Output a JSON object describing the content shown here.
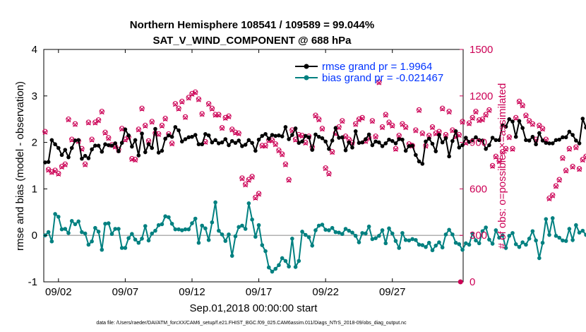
{
  "chart_data": {
    "type": "line",
    "title": "Northern Hemisphere 108541 / 109589 = 99.044%",
    "subtitle": "SAT_V_WIND_COMPONENT @ 688 hPa",
    "xlabel": "Sep.01,2018 00:00:00 start",
    "ylabel": "rmse and bias (model - observation)",
    "y2label": "# of obs: o=possible; ×=assimilated",
    "x_ticks": [
      "09/02",
      "09/07",
      "09/12",
      "09/17",
      "09/22",
      "09/27"
    ],
    "x_tick_days": [
      2,
      7,
      12,
      17,
      22,
      27
    ],
    "xlim": [
      0.9,
      32.3
    ],
    "ylim": [
      -1,
      4
    ],
    "y_ticks": [
      "-1",
      "0",
      "1",
      "2",
      "3",
      "4"
    ],
    "y2lim": [
      0,
      1500
    ],
    "y2_ticks": [
      "0",
      "300",
      "600",
      "900",
      "1200",
      "1500"
    ],
    "zero_line": 0,
    "grid": false,
    "legend_position": "top-right",
    "colors": {
      "rmse": "#000000",
      "bias": "#008080",
      "obs": "#cc0055",
      "legend_text": "#0033ff",
      "zero_line": "#b0b0b0"
    },
    "series": [
      {
        "name": "rmse grand pr = 1.9964",
        "axis": "left",
        "start_day": 1.0,
        "step_days": 0.25,
        "values": [
          1.57,
          1.58,
          2.05,
          1.96,
          1.88,
          1.73,
          1.84,
          1.68,
          1.88,
          2.04,
          2.05,
          1.65,
          1.71,
          1.66,
          1.85,
          1.93,
          1.93,
          1.8,
          1.96,
          1.94,
          1.93,
          1.98,
          1.81,
          1.99,
          2.28,
          2.15,
          1.91,
          2.05,
          1.72,
          2.19,
          1.79,
          1.96,
          1.88,
          2.29,
          1.78,
          1.82,
          2.08,
          2.15,
          2.12,
          2.33,
          2.26,
          2.02,
          2.07,
          2.11,
          2.12,
          2.16,
          1.96,
          1.96,
          2.18,
          2.15,
          2.0,
          2.05,
          1.98,
          2.0,
          2.07,
          1.94,
          2.03,
          1.99,
          2.04,
          1.92,
          1.95,
          2.05,
          1.99,
          1.82,
          2.06,
          2.14,
          2.18,
          2.08,
          2.16,
          2.14,
          2.15,
          2.13,
          2.33,
          2.07,
          2.16,
          2.3,
          1.99,
          2.02,
          2.14,
          2.11,
          1.84,
          2.17,
          2.12,
          2.09,
          2.02,
          1.86,
          2.04,
          2.31,
          2.1,
          2.11,
          1.83,
          2.0,
          1.89,
          2.24,
          1.99,
          2.0,
          2.07,
          2.17,
          1.94,
          2.02,
          2.0,
          1.92,
          1.98,
          2.06,
          2.03,
          1.98,
          2.07,
          2.06,
          1.82,
          1.92,
          1.93,
          1.73,
          1.59,
          1.54,
          2.02,
          2.08,
          1.97,
          1.81,
          2.16,
          2.0,
          2.09,
          1.7,
          2.03,
          2.24,
          1.89,
          1.94,
          2.1,
          2.01,
          2.05,
          2.11,
          2.05,
          2.04,
          1.86,
          1.94,
          2.1,
          2.05,
          2.05,
          2.37,
          2.34,
          2.5,
          2.45,
          2.12,
          2.46,
          2.31,
          2.05,
          2.04,
          2.12,
          1.96,
          2.2,
          2.04,
          1.99,
          1.98,
          1.98,
          2.05,
          2.06,
          2.11,
          2.11,
          2.23,
          2.16,
          2.04,
          1.98,
          2.51,
          2.32,
          2.34
        ]
      },
      {
        "name": "bias grand pr = -0.021467",
        "axis": "left",
        "start_day": 1.0,
        "step_days": 0.25,
        "values": [
          0.0,
          0.07,
          -0.13,
          0.46,
          0.4,
          0.13,
          0.14,
          0.05,
          0.31,
          0.24,
          0.3,
          0.07,
          0.04,
          -0.2,
          -0.13,
          0.16,
          0.08,
          -0.31,
          0.25,
          0.26,
          0.03,
          0.14,
          0.14,
          -0.27,
          -0.27,
          -0.06,
          0.03,
          -0.09,
          -0.16,
          -0.07,
          0.2,
          -0.11,
          0.04,
          0.1,
          0.22,
          0.24,
          0.41,
          0.39,
          0.25,
          0.13,
          0.13,
          0.11,
          0.13,
          0.13,
          0.26,
          0.36,
          -0.16,
          0.21,
          0.15,
          -0.1,
          0.28,
          0.71,
          0.1,
          0.02,
          -0.12,
          0.02,
          -0.44,
          -0.02,
          0.18,
          0.21,
          0.14,
          0.69,
          0.34,
          -0.03,
          0.22,
          -0.21,
          -0.34,
          -0.69,
          -0.78,
          -0.72,
          -0.64,
          -0.49,
          -0.55,
          -0.67,
          -0.07,
          -0.68,
          -0.55,
          0.08,
          0.01,
          -0.04,
          -0.22,
          0.11,
          0.21,
          0.23,
          0.12,
          0.11,
          0.16,
          0.07,
          0.06,
          0.03,
          0.14,
          0.1,
          0.06,
          -0.01,
          -0.15,
          0.05,
          0.04,
          0.19,
          -0.08,
          -0.06,
          -0.01,
          0.11,
          -0.17,
          0.15,
          0.04,
          -0.12,
          -0.27,
          0.05,
          -0.1,
          -0.11,
          -0.08,
          -0.1,
          -0.2,
          -0.21,
          -0.25,
          -0.16,
          -0.32,
          -0.22,
          -0.15,
          -0.26,
          0.02,
          0.12,
          0.02,
          -0.16,
          -0.19,
          -0.31,
          -0.17,
          -0.2,
          0.04,
          -0.11,
          -0.17,
          0.09,
          0.17,
          -0.09,
          -0.18,
          0.11,
          -0.05,
          0.0,
          -0.27,
          -0.01,
          0.05,
          -0.19,
          -0.25,
          -0.15,
          -0.2,
          -0.07,
          0.09,
          -0.11,
          -0.49,
          -0.16,
          0.35,
          0.01,
          0.37,
          -0.01,
          -0.05,
          -0.11,
          -0.12,
          0.14,
          -0.1,
          0.22,
          0.06,
          0.1,
          0.01,
          -0.02,
          0.1,
          0.06,
          -0.18,
          -0.18
        ]
      },
      {
        "name": "obs possible (o)",
        "axis": "right",
        "start_day": 1.0,
        "step_days": 0.25,
        "values": [
          970,
          725,
          710,
          720,
          700,
          745,
          760,
          1050,
          920,
          1020,
          910,
          860,
          760,
          1030,
          920,
          1030,
          1045,
          1100,
          965,
          930,
          885,
          875,
          855,
          990,
          920,
          935,
          795,
          790,
          985,
          1120,
          1010,
          910,
          1035,
          960,
          955,
          1010,
          1055,
          955,
          895,
          1150,
          1120,
          1165,
          1065,
          1190,
          1215,
          1225,
          1180,
          1085,
          905,
          1150,
          1120,
          1080,
          1080,
          995,
          1060,
          1070,
          985,
          965,
          960,
          670,
          630,
          660,
          680,
          545,
          570,
          880,
          880,
          915,
          915,
          890,
          850,
          825,
          760,
          660,
          980,
          920,
          950,
          945,
          900,
          940,
          870,
          1075,
          1050,
          990,
          735,
          700,
          840,
          960,
          1000,
          1040,
          940,
          920,
          900,
          1020,
          1050,
          1060,
          910,
          930,
          1040,
          940,
          1290,
          1000,
          1080,
          1030,
          1010,
          860,
          945,
          1020,
          1000,
          890,
          880,
          980,
          1110,
          960,
          880,
          945,
          1000,
          960,
          970,
          1120,
          950,
          1100,
          980,
          940,
          950,
          1035,
          900,
          1025,
          1060,
          1100,
          1045,
          1050,
          1080,
          1110,
          750,
          810,
          780,
          840,
          860,
          935,
          860,
          1060,
          1165,
          1140,
          1075,
          1040,
          1020,
          920,
          1010,
          990,
          920,
          540,
          560,
          620,
          660,
          800,
          720,
          860,
          745,
          870,
          730,
          790,
          810,
          830,
          800,
          780,
          760,
          770,
          770,
          660,
          680,
          770,
          780
        ]
      },
      {
        "name": "obs assimilated (×)",
        "axis": "right",
        "start_day": 1.0,
        "step_days": 0.25,
        "values": [
          965,
          720,
          705,
          715,
          695,
          740,
          755,
          1045,
          915,
          1015,
          905,
          855,
          755,
          1025,
          915,
          1025,
          1040,
          1095,
          960,
          925,
          880,
          870,
          850,
          985,
          915,
          930,
          790,
          785,
          980,
          1115,
          1005,
          905,
          1030,
          955,
          950,
          1005,
          1050,
          950,
          890,
          1145,
          1115,
          1160,
          1060,
          1185,
          1210,
          1220,
          1175,
          1080,
          900,
          1145,
          1115,
          1075,
          1075,
          990,
          1055,
          1065,
          980,
          960,
          955,
          665,
          625,
          655,
          675,
          540,
          565,
          875,
          875,
          910,
          910,
          885,
          845,
          820,
          755,
          655,
          975,
          915,
          945,
          940,
          895,
          935,
          865,
          1070,
          1045,
          985,
          730,
          695,
          835,
          955,
          995,
          1035,
          935,
          915,
          895,
          1015,
          1045,
          1055,
          905,
          925,
          1035,
          935,
          1285,
          995,
          1075,
          1025,
          1005,
          855,
          940,
          1015,
          995,
          885,
          875,
          975,
          1105,
          955,
          875,
          940,
          995,
          955,
          965,
          1115,
          945,
          1095,
          975,
          935,
          945,
          1030,
          895,
          1020,
          1055,
          1095,
          1040,
          1045,
          1075,
          1105,
          745,
          805,
          775,
          835,
          855,
          930,
          855,
          1055,
          1160,
          1135,
          1070,
          1035,
          1015,
          915,
          1005,
          985,
          915,
          535,
          555,
          615,
          655,
          795,
          715,
          855,
          740,
          865,
          725,
          785,
          805,
          825,
          795,
          775,
          755,
          765,
          765,
          655,
          675,
          765,
          775
        ]
      }
    ],
    "extra_points": [
      {
        "day": 32.1,
        "y2": 0
      }
    ]
  },
  "footer": "data file: /Users/raeder/DAI/ATM_forcXX/CAM6_setup/f.e21.FHIST_BGC.f09_025.CAM6assim.011/Diags_NTrS_2018-09/obs_diag_output.nc"
}
